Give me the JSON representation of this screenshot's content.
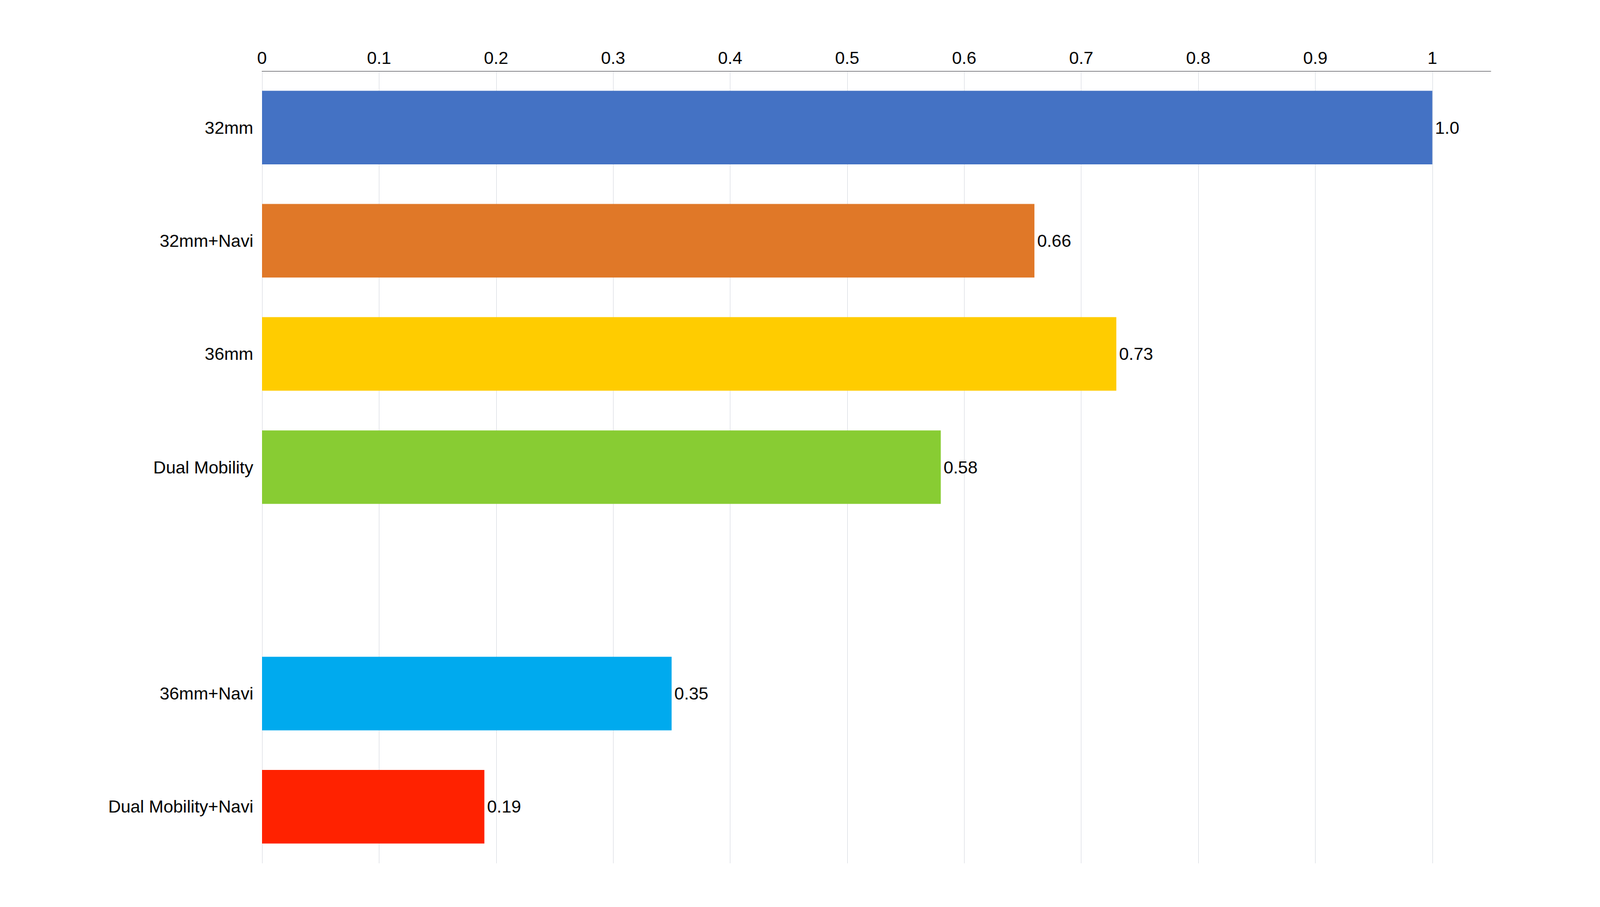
{
  "chart_data": {
    "type": "bar",
    "orientation": "horizontal",
    "categories": [
      "Dual Mobility+Navi",
      "36mm+Navi",
      null,
      "Dual Mobility",
      "36mm",
      "32mm+Navi",
      "32mm"
    ],
    "values": [
      0.19,
      0.35,
      0.0,
      0.58,
      0.73,
      0.66,
      1.0
    ],
    "value_labels": [
      "0.19",
      "0.35",
      null,
      "0.58",
      "0.73",
      "0.66",
      "1.0"
    ],
    "colors": [
      "#ff2200",
      "#00aaee",
      "#ffffff",
      "#88cc33",
      "#ffcc00",
      "#e07828",
      "#4472c4"
    ],
    "xlim": [
      0,
      1.05
    ],
    "xticks": [
      0,
      0.1,
      0.2,
      0.3,
      0.4,
      0.5,
      0.6,
      0.7,
      0.8,
      0.9,
      1
    ],
    "grid": true,
    "data_labels": true
  }
}
